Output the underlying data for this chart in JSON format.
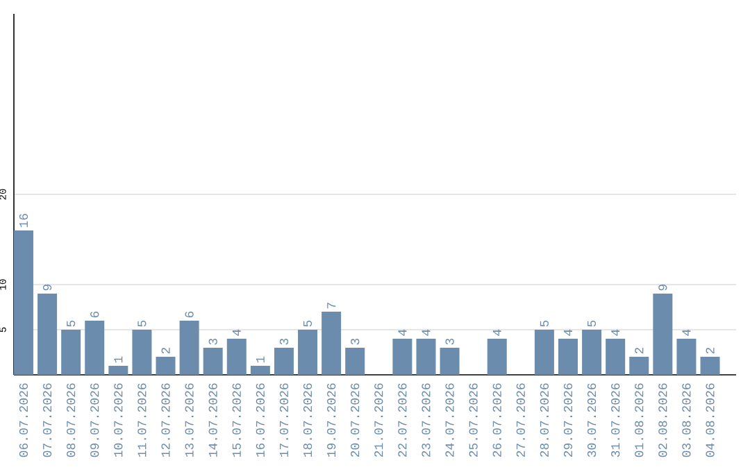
{
  "chart_data": {
    "type": "bar",
    "categories": [
      "06.07.2026",
      "07.07.2026",
      "08.07.2026",
      "09.07.2026",
      "10.07.2026",
      "11.07.2026",
      "12.07.2026",
      "13.07.2026",
      "14.07.2026",
      "15.07.2026",
      "16.07.2026",
      "17.07.2026",
      "18.07.2026",
      "19.07.2026",
      "20.07.2026",
      "21.07.2026",
      "22.07.2026",
      "23.07.2026",
      "24.07.2026",
      "25.07.2026",
      "26.07.2026",
      "27.07.2026",
      "28.07.2026",
      "29.07.2026",
      "30.07.2026",
      "31.07.2026",
      "01.08.2026",
      "02.08.2026",
      "03.08.2026",
      "04.08.2026"
    ],
    "values": [
      16,
      9,
      5,
      6,
      1,
      5,
      2,
      6,
      3,
      4,
      1,
      3,
      5,
      7,
      3,
      null,
      4,
      4,
      3,
      null,
      4,
      null,
      5,
      4,
      5,
      4,
      2,
      9,
      4,
      2
    ],
    "color": "#6b8cac",
    "ylim": [
      0,
      40
    ],
    "yticks": [
      5,
      10,
      20
    ],
    "grid": "y",
    "data_labels": true
  }
}
